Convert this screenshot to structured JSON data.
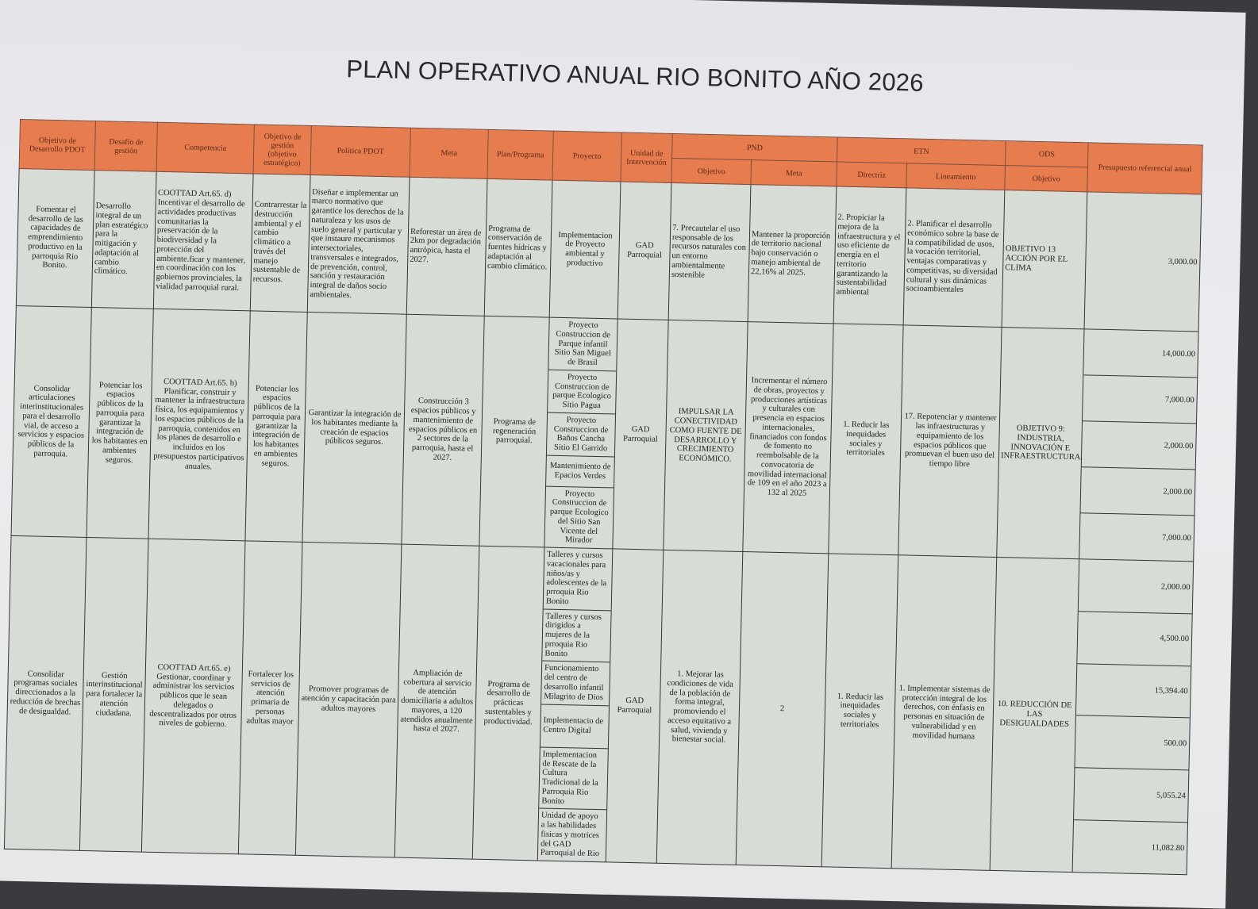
{
  "title": "PLAN OPERATIVO ANUAL RIO BONITO AÑO 2026",
  "headers": {
    "objetivo_desarrollo": "Objetivo de Desarrollo PDOT",
    "desafio": "Desafío de gestión",
    "competencia": "Competencia",
    "objetivo_gestion": "Objetivo de gestión (objetivo estratégico)",
    "politica": "Política PDOT",
    "meta": "Meta",
    "plan": "Plan/Programa",
    "proyecto": "Proyecto",
    "unidad": "Unidad de Intervención",
    "pnd": "PND",
    "pnd_objetivo": "Objetivo",
    "pnd_meta": "Meta",
    "etn": "ETN",
    "etn_directriz": "Directriz",
    "etn_lineamiento": "Lineamiento",
    "ods": "ODS",
    "ods_objetivo": "Objetivo",
    "presupuesto": "Presupuesto referencial anual"
  },
  "rows": [
    {
      "objetivo_desarrollo": "Fomentar el desarrollo de las capacidades de emprendimiento productivo en la parroquia Rio Bonito.",
      "desafio": "Desarrollo integral de un plan estratégico para la mitigación y adaptación al cambio climático.",
      "competencia": "COOTTAD Art.65. d) Incentivar el desarrollo de actividades productivas comunitarias la preservación de la biodiversidad y la protección del ambiente.ficar y mantener, en coordinación con los gobiernos provinciales, la vialidad parroquial rural.",
      "objetivo_gestion": "Contrarrestar la destrucción ambiental y el cambio climático a través del manejo sustentable de recursos.",
      "politica": "Diseñar e implementar un marco normativo que garantice los derechos de la naturaleza y los usos de suelo general y particular y que instaure mecanismos intersectoriales, transversales e integrados, de prevención, control, sanción y restauración integral de daños socio ambientales.",
      "meta": "Reforestar un área de 2km por degradación antrópica, hasta el 2027.",
      "plan": "Programa de conservación de fuentes hídricas y adaptación al cambio climático.",
      "proyectos": [
        "Implementacion de Proyecto ambiental y productivo"
      ],
      "unidad": "GAD Parroquial",
      "pnd_objetivo": "7. Precautelar el uso responsable de los recursos naturales con un entorno ambientalmente sostenible",
      "pnd_meta": "Mantener la proporción de territorio nacional bajo conservación o manejo ambiental de 22,16% al 2025.",
      "etn_directriz": "2. Propiciar la mejora de la infraestructura y el uso eficiente de energía en el territorio garantizando la sustentabilidad ambiental",
      "etn_lineamiento": "2. Planificar el desarrollo económico sobre la base de la compatibilidad de usos, la vocación territorial, ventajas comparativas y competitivas, su diversidad cultural y sus dinámicas socioambientales",
      "ods_objetivo": "OBJETIVO 13 ACCIÓN POR EL CLIMA",
      "presupuestos": [
        "3,000.00"
      ]
    },
    {
      "objetivo_desarrollo": "Consolidar articulaciones interinstitucionales para el desarrollo vial, de acceso a servicios y espacios públicos de la parroquia.",
      "desafio": "Potenciar los espacios públicos de la parroquia para garantizar la integración de los habitantes en ambientes seguros.",
      "competencia": "COOTTAD Art.65. b) Planificar, construir y mantener la infraestructura física, los equipamientos y los espacios públicos de la parroquia, contenidos en los planes de desarrollo e incluidos en los presupuestos participativos anuales.",
      "objetivo_gestion": "Potenciar los espacios públicos de la parroquia para garantizar la integración de los habitantes en ambientes seguros.",
      "politica": "Garantizar la integración de los habitantes mediante la creación de espacios públicos seguros.",
      "meta": "Construcción 3 espacios públicos y mantenimiento de espacios públicos en 2 sectores de la parroquia, hasta el 2027.",
      "plan": "Programa de regeneración parroquial.",
      "proyectos": [
        "Proyecto Construccion de Parque infantil Sitio San Miguel de Brasil",
        "Proyecto Construccion de parque Ecologico Sitio Pagua",
        "Proyecto Construccion de Baños Cancha Sitio El Garrido",
        "Mantenimiento de Epacios Verdes",
        "Proyecto Construccion de parque Ecologico del Sitio San Vicente del Mirador"
      ],
      "unidad": "GAD Parroquial",
      "pnd_objetivo": "IMPULSAR LA CONECTIVIDAD COMO FUENTE DE DESARROLLO Y CRECIMIENTO ECONÓMICO.",
      "pnd_meta": "Incrementar el número de obras, proyectos y producciones artísticas y culturales con presencia en espacios internacionales, financiados con fondos de fomento no reembolsable de la convocatoria de movilidad internacional de 109 en el año 2023 a 132 al 2025",
      "etn_directriz": "1. Reducir las inequidades sociales y territoriales",
      "etn_lineamiento": "17. Repotenciar y mantener las infraestructuras y equipamiento de los espacios públicos que promuevan el buen uso del tiempo libre",
      "ods_objetivo": "OBJETIVO 9: INDUSTRIA, INNOVACIÓN E INFRAESTRUCTURA.",
      "presupuestos": [
        "14,000.00",
        "7,000.00",
        "2,000.00",
        "2,000.00",
        "7,000.00"
      ]
    },
    {
      "objetivo_desarrollo": "Consolidar programas sociales direccionados a la reducción de brechas de desigualdad.",
      "desafio": "Gestión interinstitucional para fortalecer la atención ciudadana.",
      "competencia": "COOTTAD Art.65. e) Gestionar, coordinar y administrar los servicios públicos que le sean delegados o descentralizados por otros niveles de gobierno.",
      "objetivo_gestion": "Fortalecer los servicios de atención primaria de personas adultas mayor",
      "politica": "Promover programas de atención y capacitación para adultos mayores",
      "meta": "Ampliación de cobertura al servicio de atención domiciliaria a adultos mayores, a 120 atendidos anualmente hasta el 2027.",
      "plan": "Programa de desarrollo de prácticas sustentables y productividad.",
      "proyectos": [
        "Talleres y cursos vacacionales para niños/as y adolescentes de la prroquia Rio Bonito",
        "Talleres y cursos dirigidos a mujeres de la prroquia Rio Bonito",
        "Funcionamiento del centro de desarrollo infantil Milagrito de Dios",
        "Implementacio de Centro Digital",
        "Implementacion de Rescate de la Cultura Tradicional de la Parroquia Rio Bonito",
        "Unidad de apoyo a las habilidades fisicas y motrices del GAD Parroquial de Rio"
      ],
      "unidad": "GAD Parroquial",
      "pnd_objetivo": "1. Mejorar las condiciones de vida de la población de forma integral, promoviendo el acceso equitativo a salud, vivienda y bienestar social.",
      "pnd_meta": "2",
      "etn_directriz": "1. Reducir las inequidades sociales y territoriales",
      "etn_lineamiento": "1. Implementar sistemas de protección integral de los derechos, con énfasis en personas en situación de vulnerabilidad y en movilidad humana",
      "ods_objetivo": "10. REDUCCIÓN DE LAS DESIGUALDADES",
      "presupuestos": [
        "2,000.00",
        "4,500.00",
        "15,394.40",
        "500.00",
        "5,055.24",
        "11,082.80"
      ]
    }
  ],
  "colors": {
    "header": "#e77c4e",
    "cell": "#d7ddd6"
  }
}
